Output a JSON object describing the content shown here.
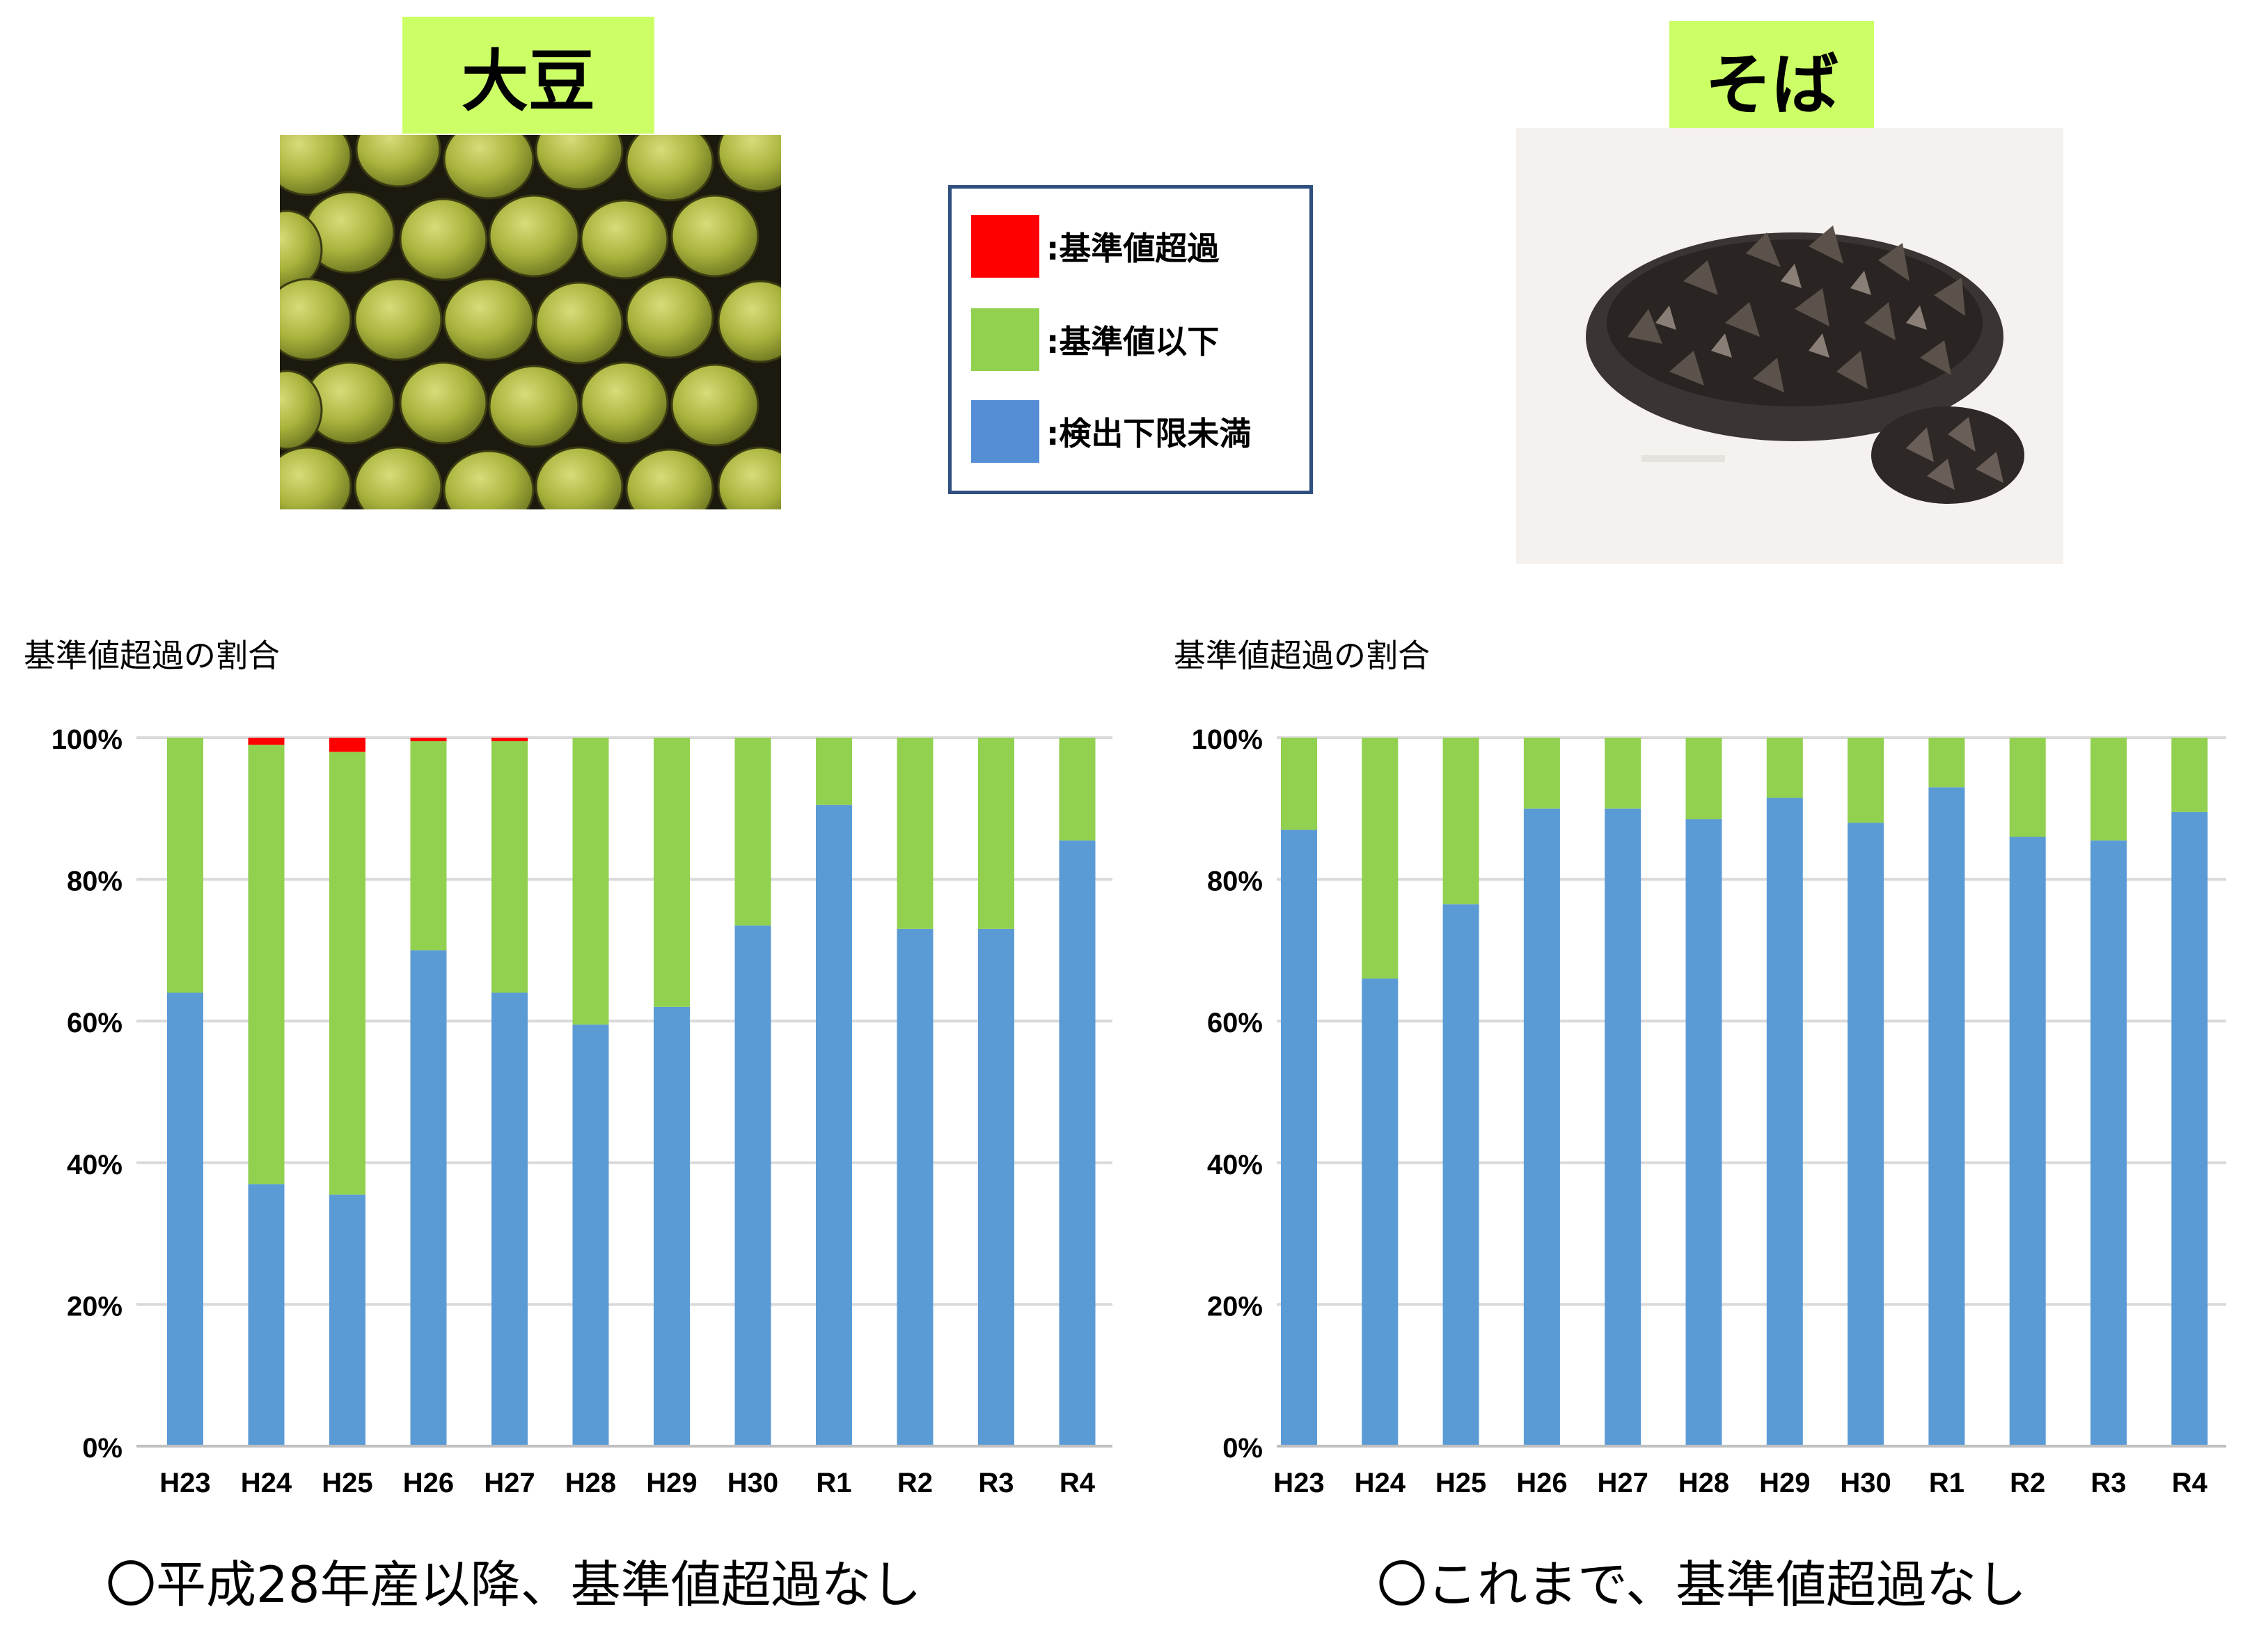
{
  "legend": {
    "items": [
      {
        "label": ":基準値超過",
        "color": "#ff0000"
      },
      {
        "label": ":基準値以下",
        "color": "#92d050"
      },
      {
        "label": ":検出下限未満",
        "color": "#558ed5"
      }
    ]
  },
  "panels": [
    {
      "crop_title": "大豆",
      "y_title": "基準値超過の割合",
      "caption": "〇平成28年産以降、基準値超過なし"
    },
    {
      "crop_title": "そば",
      "y_title": "基準値超過の割合",
      "caption": "〇これまで、基準値超過なし"
    }
  ],
  "colors": {
    "below_detection": "#5b9bd5",
    "below_standard": "#92d050",
    "exceeding": "#ff0000",
    "grid": "#d9d9d9"
  },
  "chart_data": [
    {
      "type": "bar",
      "stacked": true,
      "categories": [
        "H23",
        "H24",
        "H25",
        "H26",
        "H27",
        "H28",
        "H29",
        "H30",
        "R1",
        "R2",
        "R3",
        "R4"
      ],
      "series": [
        {
          "name": "検出下限未満",
          "values": [
            64,
            37,
            35.5,
            70,
            64,
            59.5,
            62,
            73.5,
            90.5,
            73,
            73,
            85.5
          ]
        },
        {
          "name": "基準値以下",
          "values": [
            36,
            62,
            62.5,
            29.5,
            35.5,
            40.5,
            38,
            26.5,
            9.5,
            27,
            27,
            14.5
          ]
        },
        {
          "name": "基準値超過",
          "values": [
            0,
            1,
            2,
            0.5,
            0.5,
            0,
            0,
            0,
            0,
            0,
            0,
            0
          ]
        }
      ],
      "yticks": [
        "0%",
        "20%",
        "40%",
        "60%",
        "80%",
        "100%"
      ],
      "ylim": [
        0,
        100
      ],
      "grid": true
    },
    {
      "type": "bar",
      "stacked": true,
      "categories": [
        "H23",
        "H24",
        "H25",
        "H26",
        "H27",
        "H28",
        "H29",
        "H30",
        "R1",
        "R2",
        "R3",
        "R4"
      ],
      "series": [
        {
          "name": "検出下限未満",
          "values": [
            87,
            66,
            76.5,
            90,
            90,
            88.5,
            91.5,
            88,
            93,
            86,
            85.5,
            89.5
          ]
        },
        {
          "name": "基準値以下",
          "values": [
            13,
            34,
            23.5,
            10,
            10,
            11.5,
            8.5,
            12,
            7,
            14,
            14.5,
            10.5
          ]
        },
        {
          "name": "基準値超過",
          "values": [
            0,
            0,
            0,
            0,
            0,
            0,
            0,
            0,
            0,
            0,
            0,
            0
          ]
        }
      ],
      "yticks": [
        "0%",
        "20%",
        "40%",
        "60%",
        "80%",
        "100%"
      ],
      "ylim": [
        0,
        100
      ],
      "grid": true
    }
  ]
}
